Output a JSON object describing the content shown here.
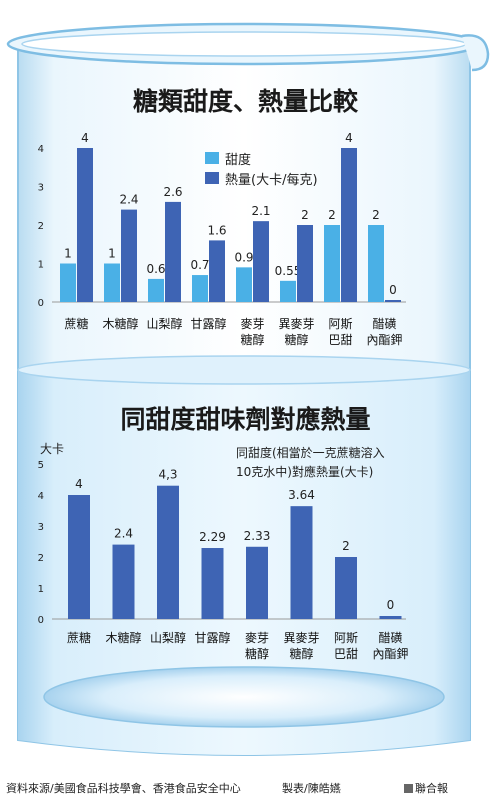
{
  "chart_data": [
    {
      "type": "bar",
      "title": "糖類甜度、熱量比較",
      "categories": [
        [
          "蔗糖"
        ],
        [
          "木糖醇"
        ],
        [
          "山梨醇"
        ],
        [
          "甘露醇"
        ],
        [
          "麥芽",
          "糖醇"
        ],
        [
          "異麥芽",
          "糖醇"
        ],
        [
          "阿斯",
          "巴甜"
        ],
        [
          "醋磺",
          "內酯鉀"
        ]
      ],
      "series": [
        {
          "name": "甜度",
          "values": [
            1,
            1,
            0.6,
            0.7,
            0.9,
            0.55,
            2,
            2
          ],
          "color": "#4ab0e6"
        },
        {
          "name": "熱量(大卡/每克)",
          "values": [
            4,
            2.4,
            2.6,
            1.6,
            2.1,
            2,
            4,
            0
          ],
          "color": "#3e64b4"
        }
      ],
      "value_labels": [
        [
          "1",
          "1",
          "0.6",
          "0.7",
          "0.9",
          "0.55",
          "2",
          "2"
        ],
        [
          "4",
          "2.4",
          "2.6",
          "1.6",
          "2.1",
          "2",
          "4",
          "0"
        ]
      ],
      "yticks": [
        0,
        1,
        2,
        3,
        4
      ],
      "ylim": [
        0,
        4
      ],
      "grid": false,
      "legend": "top-center"
    },
    {
      "type": "bar",
      "title": "同甜度甜味劑對應熱量",
      "ylabel": "大卡",
      "note_lines": [
        "同甜度(相當於一克蔗糖溶入",
        "10克水中)對應熱量(大卡)"
      ],
      "categories": [
        [
          "蔗糖"
        ],
        [
          "木糖醇"
        ],
        [
          "山梨醇"
        ],
        [
          "甘露醇"
        ],
        [
          "麥芽",
          "糖醇"
        ],
        [
          "異麥芽",
          "糖醇"
        ],
        [
          "阿斯",
          "巴甜"
        ],
        [
          "醋磺",
          "內酯鉀"
        ]
      ],
      "series": [
        {
          "values": [
            4,
            2.4,
            4.3,
            2.29,
            2.33,
            3.64,
            2,
            0
          ],
          "color": "#3e64b4"
        }
      ],
      "value_labels": [
        "4",
        "2.4",
        "4,3",
        "2.29",
        "2.33",
        "3.64",
        "2",
        "0"
      ],
      "yticks": [
        0,
        1,
        2,
        3,
        4,
        5
      ],
      "ylim": [
        0,
        5
      ],
      "grid": false
    }
  ],
  "footer": {
    "source": "資料來源/美國食品科技學會、香港食品安全中心",
    "credit": "製表/陳皓嬿",
    "publisher": "聯合報"
  },
  "colors": {
    "beaker_glass": "#cfe8f6",
    "water": "#e3f3fc"
  }
}
